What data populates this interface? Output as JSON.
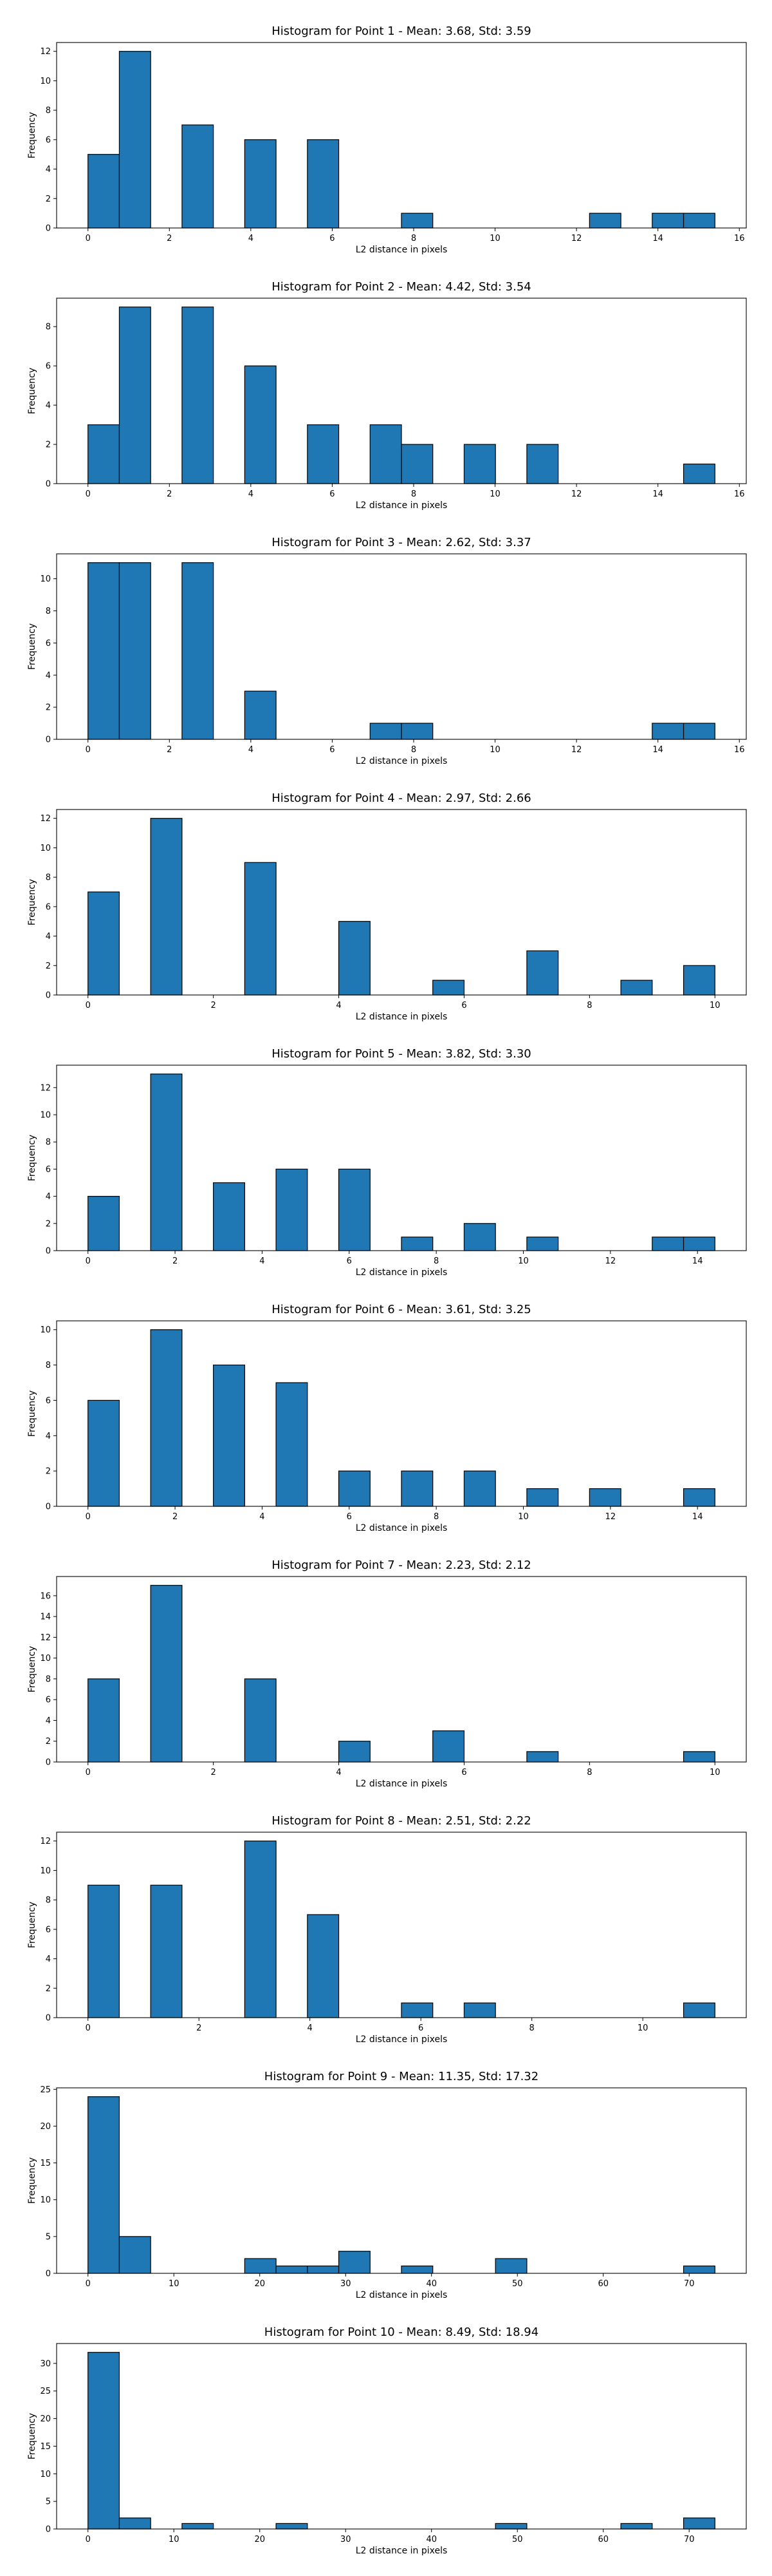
{
  "chart_data": [
    {
      "type": "bar",
      "title": "Histogram for Point 1 - Mean: 3.68, Std: 3.59",
      "xlabel": "L2 distance in pixels",
      "ylabel": "Frequency",
      "bin_edges": [
        0.0,
        0.77,
        1.54,
        2.31,
        3.08,
        3.85,
        4.62,
        5.39,
        6.16,
        6.93,
        7.7,
        8.47,
        9.24,
        10.01,
        10.78,
        11.55,
        12.32,
        13.09,
        13.86,
        14.63,
        15.4
      ],
      "values": [
        5,
        12,
        0,
        7,
        0,
        6,
        0,
        6,
        0,
        0,
        1,
        0,
        0,
        0,
        0,
        0,
        1,
        0,
        1,
        1
      ],
      "xlim": [
        -0.77,
        16.17
      ],
      "ylim": [
        0,
        12.6
      ],
      "xticks": [
        0,
        2,
        4,
        6,
        8,
        10,
        12,
        14,
        16
      ],
      "yticks": [
        0,
        2,
        4,
        6,
        8,
        10,
        12
      ]
    },
    {
      "type": "bar",
      "title": "Histogram for Point 2 - Mean: 4.42, Std: 3.54",
      "xlabel": "L2 distance in pixels",
      "ylabel": "Frequency",
      "bin_edges": [
        0.0,
        0.77,
        1.54,
        2.31,
        3.08,
        3.85,
        4.62,
        5.39,
        6.16,
        6.93,
        7.7,
        8.47,
        9.24,
        10.01,
        10.78,
        11.55,
        12.32,
        13.09,
        13.86,
        14.63,
        15.4
      ],
      "values": [
        3,
        9,
        0,
        9,
        0,
        6,
        0,
        3,
        0,
        3,
        2,
        0,
        2,
        0,
        2,
        0,
        0,
        0,
        0,
        1
      ],
      "xlim": [
        -0.77,
        16.17
      ],
      "ylim": [
        0,
        9.45
      ],
      "xticks": [
        0,
        2,
        4,
        6,
        8,
        10,
        12,
        14,
        16
      ],
      "yticks": [
        0,
        2,
        4,
        6,
        8
      ]
    },
    {
      "type": "bar",
      "title": "Histogram for Point 3 - Mean: 2.62, Std: 3.37",
      "xlabel": "L2 distance in pixels",
      "ylabel": "Frequency",
      "bin_edges": [
        0.0,
        0.77,
        1.54,
        2.31,
        3.08,
        3.85,
        4.62,
        5.39,
        6.16,
        6.93,
        7.7,
        8.47,
        9.24,
        10.01,
        10.78,
        11.55,
        12.32,
        13.09,
        13.86,
        14.63,
        15.4
      ],
      "values": [
        11,
        11,
        0,
        11,
        0,
        3,
        0,
        0,
        0,
        1,
        1,
        0,
        0,
        0,
        0,
        0,
        0,
        0,
        1,
        1
      ],
      "xlim": [
        -0.77,
        16.17
      ],
      "ylim": [
        0,
        11.55
      ],
      "xticks": [
        0,
        2,
        4,
        6,
        8,
        10,
        12,
        14,
        16
      ],
      "yticks": [
        0,
        2,
        4,
        6,
        8,
        10
      ]
    },
    {
      "type": "bar",
      "title": "Histogram for Point 4 - Mean: 2.97, Std: 2.66",
      "xlabel": "L2 distance in pixels",
      "ylabel": "Frequency",
      "bin_edges": [
        0.0,
        0.5,
        1.0,
        1.5,
        2.0,
        2.5,
        3.0,
        3.5,
        4.0,
        4.5,
        5.0,
        5.5,
        6.0,
        6.5,
        7.0,
        7.5,
        8.0,
        8.5,
        9.0,
        9.5,
        10.0
      ],
      "values": [
        7,
        0,
        12,
        0,
        0,
        9,
        0,
        0,
        5,
        0,
        0,
        1,
        0,
        0,
        3,
        0,
        0,
        1,
        0,
        2
      ],
      "xlim": [
        -0.5,
        10.5
      ],
      "ylim": [
        0,
        12.6
      ],
      "xticks": [
        0,
        2,
        4,
        6,
        8,
        10
      ],
      "yticks": [
        0,
        2,
        4,
        6,
        8,
        10,
        12
      ]
    },
    {
      "type": "bar",
      "title": "Histogram for Point 5 - Mean: 3.82, Std: 3.30",
      "xlabel": "L2 distance in pixels",
      "ylabel": "Frequency",
      "bin_edges": [
        0.0,
        0.72,
        1.44,
        2.16,
        2.88,
        3.6,
        4.32,
        5.04,
        5.76,
        6.48,
        7.2,
        7.92,
        8.64,
        9.36,
        10.08,
        10.8,
        11.52,
        12.24,
        12.96,
        13.68,
        14.4
      ],
      "values": [
        4,
        0,
        13,
        0,
        5,
        0,
        6,
        0,
        6,
        0,
        1,
        0,
        2,
        0,
        1,
        0,
        0,
        0,
        1,
        1
      ],
      "xlim": [
        -0.72,
        15.12
      ],
      "ylim": [
        0,
        13.65
      ],
      "xticks": [
        0,
        2,
        4,
        6,
        8,
        10,
        12,
        14
      ],
      "yticks": [
        0,
        2,
        4,
        6,
        8,
        10,
        12
      ]
    },
    {
      "type": "bar",
      "title": "Histogram for Point 6 - Mean: 3.61, Std: 3.25",
      "xlabel": "L2 distance in pixels",
      "ylabel": "Frequency",
      "bin_edges": [
        0.0,
        0.72,
        1.44,
        2.16,
        2.88,
        3.6,
        4.32,
        5.04,
        5.76,
        6.48,
        7.2,
        7.92,
        8.64,
        9.36,
        10.08,
        10.8,
        11.52,
        12.24,
        12.96,
        13.68,
        14.4
      ],
      "values": [
        6,
        0,
        10,
        0,
        8,
        0,
        7,
        0,
        2,
        0,
        2,
        0,
        2,
        0,
        1,
        0,
        1,
        0,
        0,
        1
      ],
      "xlim": [
        -0.72,
        15.12
      ],
      "ylim": [
        0,
        10.5
      ],
      "xticks": [
        0,
        2,
        4,
        6,
        8,
        10,
        12,
        14
      ],
      "yticks": [
        0,
        2,
        4,
        6,
        8,
        10
      ]
    },
    {
      "type": "bar",
      "title": "Histogram for Point 7 - Mean: 2.23, Std: 2.12",
      "xlabel": "L2 distance in pixels",
      "ylabel": "Frequency",
      "bin_edges": [
        0.0,
        0.5,
        1.0,
        1.5,
        2.0,
        2.5,
        3.0,
        3.5,
        4.0,
        4.5,
        5.0,
        5.5,
        6.0,
        6.5,
        7.0,
        7.5,
        8.0,
        8.5,
        9.0,
        9.5,
        10.0
      ],
      "values": [
        8,
        0,
        17,
        0,
        0,
        8,
        0,
        0,
        2,
        0,
        0,
        3,
        0,
        0,
        1,
        0,
        0,
        0,
        0,
        1
      ],
      "xlim": [
        -0.5,
        10.5
      ],
      "ylim": [
        0,
        17.85
      ],
      "xticks": [
        0,
        2,
        4,
        6,
        8,
        10
      ],
      "yticks": [
        0,
        2,
        4,
        6,
        8,
        10,
        12,
        14,
        16
      ]
    },
    {
      "type": "bar",
      "title": "Histogram for Point 8 - Mean: 2.51, Std: 2.22",
      "xlabel": "L2 distance in pixels",
      "ylabel": "Frequency",
      "bin_edges": [
        0.0,
        0.565,
        1.13,
        1.695,
        2.26,
        2.825,
        3.39,
        3.955,
        4.52,
        5.085,
        5.65,
        6.215,
        6.78,
        7.345,
        7.91,
        8.475,
        9.04,
        9.605,
        10.17,
        10.735,
        11.3
      ],
      "values": [
        9,
        0,
        9,
        0,
        0,
        12,
        0,
        7,
        0,
        0,
        1,
        0,
        1,
        0,
        0,
        0,
        0,
        0,
        0,
        1
      ],
      "xlim": [
        -0.565,
        11.865
      ],
      "ylim": [
        0,
        12.6
      ],
      "xticks": [
        0,
        2,
        4,
        6,
        8,
        10
      ],
      "yticks": [
        0,
        2,
        4,
        6,
        8,
        10,
        12
      ]
    },
    {
      "type": "bar",
      "title": "Histogram for Point 9 - Mean: 11.35, Std: 17.32",
      "xlabel": "L2 distance in pixels",
      "ylabel": "Frequency",
      "bin_edges": [
        0.0,
        3.65,
        7.3,
        10.95,
        14.6,
        18.25,
        21.9,
        25.55,
        29.2,
        32.85,
        36.5,
        40.15,
        43.8,
        47.45,
        51.1,
        54.75,
        58.4,
        62.05,
        65.7,
        69.35,
        73.0
      ],
      "values": [
        24,
        5,
        0,
        0,
        0,
        2,
        1,
        1,
        3,
        0,
        1,
        0,
        0,
        2,
        0,
        0,
        0,
        0,
        0,
        1
      ],
      "xlim": [
        -3.65,
        76.65
      ],
      "ylim": [
        0,
        25.2
      ],
      "xticks": [
        0,
        10,
        20,
        30,
        40,
        50,
        60,
        70
      ],
      "yticks": [
        0,
        5,
        10,
        15,
        20,
        25
      ]
    },
    {
      "type": "bar",
      "title": "Histogram for Point 10 - Mean: 8.49, Std: 18.94",
      "xlabel": "L2 distance in pixels",
      "ylabel": "Frequency",
      "bin_edges": [
        0.0,
        3.65,
        7.3,
        10.95,
        14.6,
        18.25,
        21.9,
        25.55,
        29.2,
        32.85,
        36.5,
        40.15,
        43.8,
        47.45,
        51.1,
        54.75,
        58.4,
        62.05,
        65.7,
        69.35,
        73.0
      ],
      "values": [
        32,
        2,
        0,
        1,
        0,
        0,
        1,
        0,
        0,
        0,
        0,
        0,
        0,
        1,
        0,
        0,
        0,
        1,
        0,
        2
      ],
      "xlim": [
        -3.65,
        76.65
      ],
      "ylim": [
        0,
        33.6
      ],
      "xticks": [
        0,
        10,
        20,
        30,
        40,
        50,
        60,
        70
      ],
      "yticks": [
        0,
        5,
        10,
        15,
        20,
        25,
        30
      ]
    }
  ],
  "colors": {
    "bar_fill": "#1f77b4",
    "bar_edge": "#000000",
    "axes": "#000000",
    "background": "#ffffff"
  }
}
